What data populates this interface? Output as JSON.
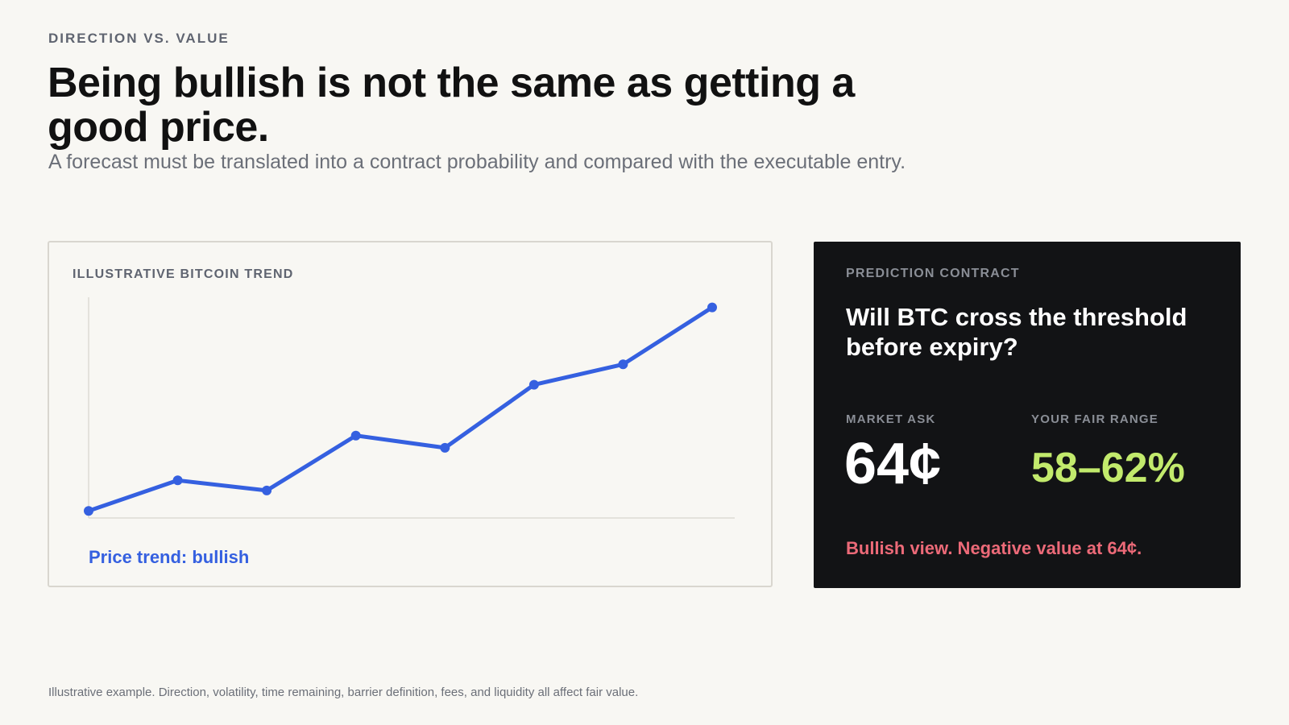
{
  "header": {
    "eyebrow": "DIRECTION VS. VALUE",
    "title": "Being bullish is not the same as getting a good price.",
    "subtitle": "A forecast must be translated into a contract probability and compared with the executable entry."
  },
  "trend_card": {
    "label": "ILLUSTRATIVE BITCOIN TREND",
    "trend_label": "Price trend: bullish"
  },
  "chart_data": {
    "type": "line",
    "x": [
      0,
      1,
      2,
      3,
      4,
      5,
      6,
      7
    ],
    "series": [
      {
        "values": [
          0,
          15,
          10,
          37,
          31,
          62,
          72,
          100
        ]
      }
    ],
    "ylim": [
      -3.5,
      105
    ],
    "grid": false,
    "line_color": "#3560e0",
    "axis_color": "#dedbd4"
  },
  "contract_card": {
    "label": "PREDICTION CONTRACT",
    "question": "Will BTC cross the threshold before expiry?",
    "ask_label": "MARKET ASK",
    "ask_value": "64¢",
    "fair_label": "YOUR FAIR RANGE",
    "fair_value": "58–62%",
    "verdict": "Bullish view. Negative value at 64¢."
  },
  "footnote": "Illustrative example. Direction, volatility, time remaining, barrier definition, fees, and liquidity all affect fair value.",
  "colors": {
    "background": "#f8f7f3",
    "accent_blue": "#3560e0",
    "dark_card": "#121315",
    "fair_green": "#c2ea6c",
    "negative_red": "#ec6a78"
  }
}
